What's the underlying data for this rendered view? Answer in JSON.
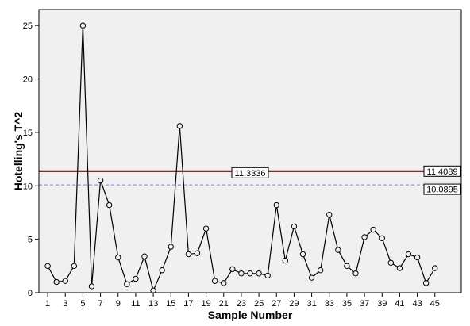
{
  "chart_data": {
    "type": "line",
    "title": "",
    "xlabel": "Sample Number",
    "ylabel": "Hotelling's T^2",
    "xlim": [
      0,
      48
    ],
    "ylim": [
      0,
      26.5
    ],
    "x_ticks": [
      1,
      3,
      5,
      7,
      9,
      11,
      13,
      15,
      17,
      19,
      21,
      23,
      25,
      27,
      29,
      31,
      33,
      35,
      37,
      39,
      41,
      43,
      45
    ],
    "y_ticks": [
      0,
      5,
      10,
      15,
      20,
      25
    ],
    "grid": false,
    "series": [
      {
        "x": [
          1,
          2,
          3,
          4,
          5,
          6,
          7,
          8,
          9,
          10,
          11,
          12,
          13,
          14,
          15,
          16,
          17,
          18,
          19,
          20,
          21,
          22,
          23,
          24,
          25,
          26,
          27,
          28,
          29,
          30,
          31,
          32,
          33,
          34,
          35,
          36,
          37,
          38,
          39,
          40,
          41,
          42,
          43,
          44,
          45
        ],
        "values": [
          2.5,
          1.0,
          1.1,
          2.5,
          25.0,
          0.6,
          10.5,
          8.2,
          3.3,
          0.8,
          1.3,
          3.4,
          0.2,
          2.1,
          4.3,
          15.6,
          3.6,
          3.7,
          6.0,
          1.1,
          0.9,
          2.2,
          1.8,
          1.8,
          1.8,
          1.6,
          8.2,
          3.0,
          6.2,
          3.6,
          1.4,
          2.1,
          7.3,
          4.0,
          2.5,
          1.8,
          5.2,
          5.9,
          5.1,
          2.8,
          2.3,
          3.6,
          3.3,
          0.9,
          2.3
        ],
        "color": "#000000"
      }
    ],
    "reference_lines": [
      {
        "value": 11.4089,
        "label": "11.4089",
        "color": "#5a1b1b",
        "style": "solid",
        "label_position": "right"
      },
      {
        "value": 11.3336,
        "label": "11.3336",
        "color": "#5a1b1b",
        "style": "solid",
        "label_position": "middle"
      },
      {
        "value": 10.0895,
        "label": "10.0895",
        "color": "#7a7aff",
        "style": "dashed",
        "label_position": "right"
      }
    ],
    "colors": {
      "plot_background": "#f0f0f0",
      "marker_fill": "#f0f0f0"
    }
  }
}
